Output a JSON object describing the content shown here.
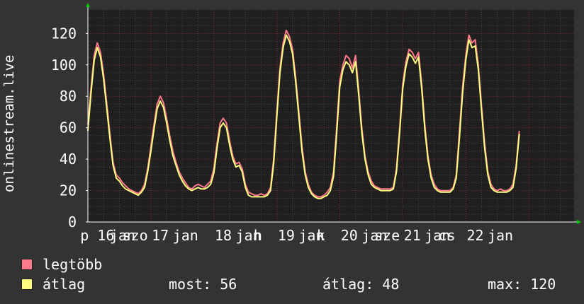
{
  "colors": {
    "background": "#333333",
    "plot_background": "#1f1f1f",
    "grid_major": "#7a2a2a",
    "grid_minor": "#444444",
    "axis": "#ffffff",
    "max_series": "#ff7a8a",
    "avg_series": "#ffff80",
    "arrow": "#00cc00"
  },
  "legend": {
    "items": [
      {
        "label": "legtöbb",
        "color": "#ff7a8a"
      },
      {
        "label": "átlag",
        "color": "#ffff80"
      }
    ]
  },
  "stats": {
    "now": "most: 56",
    "avg": "átlag: 48",
    "max": "max: 120"
  },
  "chart_data": {
    "type": "line",
    "ylabel": "onlinestream.live",
    "ylim": [
      0,
      135
    ],
    "yticks": [
      0,
      20,
      40,
      60,
      80,
      100,
      120
    ],
    "xlim": [
      0,
      7.72
    ],
    "x_tick_labels": [
      {
        "x": 0.15,
        "label": "p 16"
      },
      {
        "x": 0.55,
        "label": "jan"
      },
      {
        "x": 0.75,
        "label": "szo"
      },
      {
        "x": 1.15,
        "label": "17"
      },
      {
        "x": 1.55,
        "label": "jan"
      },
      {
        "x": 2.15,
        "label": "18"
      },
      {
        "x": 2.55,
        "label": "jan"
      },
      {
        "x": 2.7,
        "label": "h"
      },
      {
        "x": 3.15,
        "label": "19"
      },
      {
        "x": 3.55,
        "label": "jan"
      },
      {
        "x": 3.7,
        "label": "k"
      },
      {
        "x": 4.15,
        "label": "20"
      },
      {
        "x": 4.55,
        "label": "jan"
      },
      {
        "x": 4.75,
        "label": "sze"
      },
      {
        "x": 5.15,
        "label": "21"
      },
      {
        "x": 5.55,
        "label": "jan"
      },
      {
        "x": 5.7,
        "label": "cs"
      },
      {
        "x": 6.15,
        "label": "22"
      },
      {
        "x": 6.55,
        "label": "jan"
      }
    ],
    "series": [
      {
        "name": "legtöbb",
        "color": "#ff7a8a",
        "points": [
          [
            0.0,
            62
          ],
          [
            0.05,
            85
          ],
          [
            0.1,
            106
          ],
          [
            0.15,
            114
          ],
          [
            0.2,
            108
          ],
          [
            0.25,
            94
          ],
          [
            0.3,
            75
          ],
          [
            0.35,
            56
          ],
          [
            0.4,
            38
          ],
          [
            0.45,
            30
          ],
          [
            0.5,
            28
          ],
          [
            0.55,
            25
          ],
          [
            0.6,
            23
          ],
          [
            0.65,
            21
          ],
          [
            0.7,
            20
          ],
          [
            0.75,
            19
          ],
          [
            0.8,
            18
          ],
          [
            0.85,
            20
          ],
          [
            0.9,
            24
          ],
          [
            0.95,
            34
          ],
          [
            1.0,
            48
          ],
          [
            1.05,
            62
          ],
          [
            1.1,
            75
          ],
          [
            1.15,
            80
          ],
          [
            1.2,
            76
          ],
          [
            1.25,
            66
          ],
          [
            1.3,
            55
          ],
          [
            1.35,
            45
          ],
          [
            1.4,
            38
          ],
          [
            1.45,
            32
          ],
          [
            1.5,
            28
          ],
          [
            1.55,
            25
          ],
          [
            1.6,
            22
          ],
          [
            1.65,
            21
          ],
          [
            1.7,
            23
          ],
          [
            1.75,
            24
          ],
          [
            1.8,
            23
          ],
          [
            1.85,
            22
          ],
          [
            1.9,
            24
          ],
          [
            1.95,
            26
          ],
          [
            2.0,
            34
          ],
          [
            2.05,
            50
          ],
          [
            2.1,
            63
          ],
          [
            2.15,
            66
          ],
          [
            2.2,
            63
          ],
          [
            2.25,
            52
          ],
          [
            2.3,
            42
          ],
          [
            2.35,
            37
          ],
          [
            2.4,
            38
          ],
          [
            2.45,
            34
          ],
          [
            2.5,
            24
          ],
          [
            2.55,
            19
          ],
          [
            2.6,
            18
          ],
          [
            2.65,
            17
          ],
          [
            2.7,
            17
          ],
          [
            2.75,
            18
          ],
          [
            2.8,
            17
          ],
          [
            2.85,
            18
          ],
          [
            2.9,
            22
          ],
          [
            2.95,
            40
          ],
          [
            3.0,
            70
          ],
          [
            3.05,
            98
          ],
          [
            3.1,
            114
          ],
          [
            3.15,
            122
          ],
          [
            3.2,
            118
          ],
          [
            3.25,
            110
          ],
          [
            3.3,
            92
          ],
          [
            3.35,
            70
          ],
          [
            3.4,
            48
          ],
          [
            3.45,
            32
          ],
          [
            3.5,
            24
          ],
          [
            3.55,
            19
          ],
          [
            3.6,
            17
          ],
          [
            3.65,
            16
          ],
          [
            3.7,
            16
          ],
          [
            3.75,
            17
          ],
          [
            3.8,
            19
          ],
          [
            3.85,
            22
          ],
          [
            3.9,
            32
          ],
          [
            3.95,
            60
          ],
          [
            4.0,
            90
          ],
          [
            4.05,
            100
          ],
          [
            4.1,
            106
          ],
          [
            4.15,
            104
          ],
          [
            4.2,
            98
          ],
          [
            4.25,
            106
          ],
          [
            4.3,
            84
          ],
          [
            4.35,
            60
          ],
          [
            4.4,
            42
          ],
          [
            4.45,
            32
          ],
          [
            4.5,
            26
          ],
          [
            4.55,
            23
          ],
          [
            4.6,
            22
          ],
          [
            4.65,
            21
          ],
          [
            4.7,
            21
          ],
          [
            4.75,
            21
          ],
          [
            4.8,
            21
          ],
          [
            4.85,
            22
          ],
          [
            4.9,
            34
          ],
          [
            4.95,
            60
          ],
          [
            5.0,
            88
          ],
          [
            5.05,
            102
          ],
          [
            5.1,
            110
          ],
          [
            5.15,
            108
          ],
          [
            5.2,
            104
          ],
          [
            5.25,
            108
          ],
          [
            5.3,
            88
          ],
          [
            5.35,
            62
          ],
          [
            5.4,
            42
          ],
          [
            5.45,
            30
          ],
          [
            5.5,
            24
          ],
          [
            5.55,
            21
          ],
          [
            5.6,
            20
          ],
          [
            5.65,
            20
          ],
          [
            5.7,
            20
          ],
          [
            5.75,
            20
          ],
          [
            5.8,
            22
          ],
          [
            5.85,
            30
          ],
          [
            5.9,
            58
          ],
          [
            5.95,
            86
          ],
          [
            6.0,
            106
          ],
          [
            6.05,
            119
          ],
          [
            6.1,
            114
          ],
          [
            6.15,
            116
          ],
          [
            6.2,
            100
          ],
          [
            6.25,
            74
          ],
          [
            6.3,
            50
          ],
          [
            6.35,
            32
          ],
          [
            6.4,
            24
          ],
          [
            6.45,
            21
          ],
          [
            6.5,
            20
          ],
          [
            6.55,
            21
          ],
          [
            6.6,
            20
          ],
          [
            6.65,
            20
          ],
          [
            6.7,
            21
          ],
          [
            6.75,
            24
          ],
          [
            6.8,
            36
          ],
          [
            6.85,
            58
          ]
        ]
      },
      {
        "name": "átlag",
        "color": "#ffff80",
        "points": [
          [
            0.0,
            58
          ],
          [
            0.05,
            82
          ],
          [
            0.1,
            103
          ],
          [
            0.15,
            111
          ],
          [
            0.2,
            105
          ],
          [
            0.25,
            91
          ],
          [
            0.3,
            72
          ],
          [
            0.35,
            53
          ],
          [
            0.4,
            36
          ],
          [
            0.45,
            28
          ],
          [
            0.5,
            26
          ],
          [
            0.55,
            23
          ],
          [
            0.6,
            21
          ],
          [
            0.65,
            20
          ],
          [
            0.7,
            19
          ],
          [
            0.75,
            18
          ],
          [
            0.8,
            17
          ],
          [
            0.85,
            19
          ],
          [
            0.9,
            22
          ],
          [
            0.95,
            32
          ],
          [
            1.0,
            45
          ],
          [
            1.05,
            59
          ],
          [
            1.1,
            72
          ],
          [
            1.15,
            77
          ],
          [
            1.2,
            73
          ],
          [
            1.25,
            63
          ],
          [
            1.3,
            52
          ],
          [
            1.35,
            42
          ],
          [
            1.4,
            36
          ],
          [
            1.45,
            30
          ],
          [
            1.5,
            26
          ],
          [
            1.55,
            23
          ],
          [
            1.6,
            21
          ],
          [
            1.65,
            20
          ],
          [
            1.7,
            21
          ],
          [
            1.75,
            22
          ],
          [
            1.8,
            21
          ],
          [
            1.85,
            21
          ],
          [
            1.9,
            22
          ],
          [
            1.95,
            24
          ],
          [
            2.0,
            31
          ],
          [
            2.05,
            47
          ],
          [
            2.1,
            60
          ],
          [
            2.15,
            63
          ],
          [
            2.2,
            60
          ],
          [
            2.25,
            49
          ],
          [
            2.3,
            40
          ],
          [
            2.35,
            35
          ],
          [
            2.4,
            36
          ],
          [
            2.45,
            32
          ],
          [
            2.5,
            22
          ],
          [
            2.55,
            17
          ],
          [
            2.6,
            16
          ],
          [
            2.65,
            16
          ],
          [
            2.7,
            16
          ],
          [
            2.75,
            16
          ],
          [
            2.8,
            16
          ],
          [
            2.85,
            17
          ],
          [
            2.9,
            20
          ],
          [
            2.95,
            37
          ],
          [
            3.0,
            67
          ],
          [
            3.05,
            95
          ],
          [
            3.1,
            111
          ],
          [
            3.15,
            119
          ],
          [
            3.2,
            115
          ],
          [
            3.25,
            107
          ],
          [
            3.3,
            89
          ],
          [
            3.35,
            67
          ],
          [
            3.4,
            45
          ],
          [
            3.45,
            30
          ],
          [
            3.5,
            22
          ],
          [
            3.55,
            18
          ],
          [
            3.6,
            16
          ],
          [
            3.65,
            15
          ],
          [
            3.7,
            15
          ],
          [
            3.75,
            16
          ],
          [
            3.8,
            17
          ],
          [
            3.85,
            20
          ],
          [
            3.9,
            29
          ],
          [
            3.95,
            56
          ],
          [
            4.0,
            86
          ],
          [
            4.05,
            97
          ],
          [
            4.1,
            102
          ],
          [
            4.15,
            100
          ],
          [
            4.2,
            95
          ],
          [
            4.25,
            102
          ],
          [
            4.3,
            81
          ],
          [
            4.35,
            57
          ],
          [
            4.4,
            40
          ],
          [
            4.45,
            30
          ],
          [
            4.5,
            24
          ],
          [
            4.55,
            22
          ],
          [
            4.6,
            21
          ],
          [
            4.65,
            20
          ],
          [
            4.7,
            20
          ],
          [
            4.75,
            20
          ],
          [
            4.8,
            20
          ],
          [
            4.85,
            21
          ],
          [
            4.9,
            32
          ],
          [
            4.95,
            57
          ],
          [
            5.0,
            85
          ],
          [
            5.05,
            99
          ],
          [
            5.1,
            107
          ],
          [
            5.15,
            105
          ],
          [
            5.2,
            101
          ],
          [
            5.25,
            105
          ],
          [
            5.3,
            85
          ],
          [
            5.35,
            59
          ],
          [
            5.4,
            40
          ],
          [
            5.45,
            28
          ],
          [
            5.5,
            22
          ],
          [
            5.55,
            20
          ],
          [
            5.6,
            19
          ],
          [
            5.65,
            19
          ],
          [
            5.7,
            19
          ],
          [
            5.75,
            19
          ],
          [
            5.8,
            21
          ],
          [
            5.85,
            28
          ],
          [
            5.9,
            54
          ],
          [
            5.95,
            82
          ],
          [
            6.0,
            103
          ],
          [
            6.05,
            116
          ],
          [
            6.1,
            111
          ],
          [
            6.15,
            112
          ],
          [
            6.2,
            97
          ],
          [
            6.25,
            71
          ],
          [
            6.3,
            47
          ],
          [
            6.35,
            30
          ],
          [
            6.4,
            22
          ],
          [
            6.45,
            20
          ],
          [
            6.5,
            19
          ],
          [
            6.55,
            19
          ],
          [
            6.6,
            19
          ],
          [
            6.65,
            19
          ],
          [
            6.7,
            20
          ],
          [
            6.75,
            22
          ],
          [
            6.8,
            34
          ],
          [
            6.85,
            56
          ]
        ]
      }
    ]
  }
}
